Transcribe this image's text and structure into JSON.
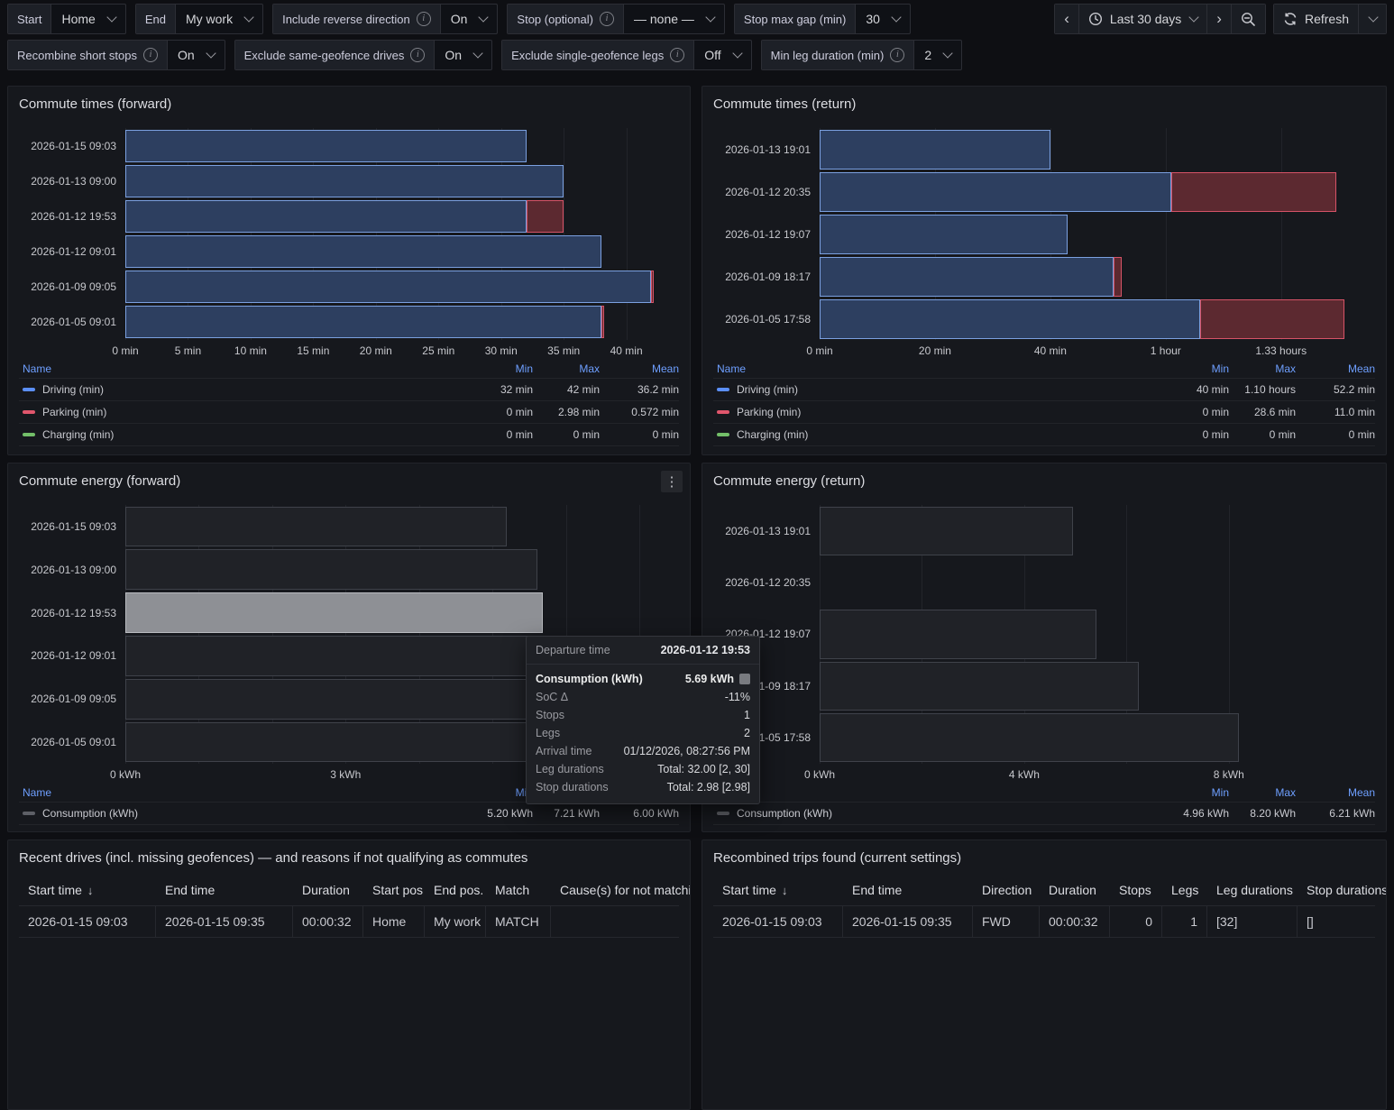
{
  "colors": {
    "page_bg": "#0e0f13",
    "panel_bg": "#16181d",
    "link_blue": "#6e9fff",
    "driving_swatch": "#5b8ff9",
    "parking_swatch": "#e0566c",
    "charging_swatch": "#73bf69",
    "consumption_swatch": "#5d5f66"
  },
  "toolbar": {
    "filters": [
      [
        {
          "label": "Start",
          "info": false,
          "value": "Home"
        },
        {
          "label": "End",
          "info": false,
          "value": "My work"
        },
        {
          "label": "Include reverse direction",
          "info": true,
          "value": "On"
        },
        {
          "label": "Stop (optional)",
          "info": true,
          "value": "— none —"
        },
        {
          "label": "Stop max gap (min)",
          "info": false,
          "value": "30"
        }
      ],
      [
        {
          "label": "Recombine short stops",
          "info": true,
          "value": "On"
        },
        {
          "label": "Exclude same-geofence drives",
          "info": true,
          "value": "On"
        },
        {
          "label": "Exclude single-geofence legs",
          "info": true,
          "value": "Off"
        },
        {
          "label": "Min leg duration (min)",
          "info": true,
          "value": "2"
        }
      ]
    ],
    "time_picker": {
      "range": "Last 30 days",
      "refresh": "Refresh"
    }
  },
  "legend_headers": [
    "Name",
    "Min",
    "Max",
    "Mean"
  ],
  "chart_data": [
    {
      "type": "bar",
      "orientation": "horizontal",
      "title": "Commute times (forward)",
      "xlabel": "minutes",
      "categories": [
        "2026-01-15 09:03",
        "2026-01-13 09:00",
        "2026-01-12 19:53",
        "2026-01-12 09:01",
        "2026-01-09 09:05",
        "2026-01-05 09:01"
      ],
      "series": [
        {
          "name": "Driving (min)",
          "swatch": "#5b8ff9",
          "fill": "#2d3f60",
          "border": "#7ba0e0",
          "values": [
            32,
            35,
            32,
            38,
            42,
            38
          ]
        },
        {
          "name": "Parking (min)",
          "swatch": "#e0566c",
          "fill": "#5c2930",
          "border": "#d65367",
          "values": [
            0,
            0,
            2.98,
            0,
            0.2,
            0.25
          ]
        },
        {
          "name": "Charging (min)",
          "swatch": "#73bf69",
          "fill": "#2b4a2a",
          "border": "#73bf69",
          "values": [
            0,
            0,
            0,
            0,
            0,
            0
          ]
        }
      ],
      "xlim": [
        0,
        44.2
      ],
      "gridlines": [
        0,
        5,
        10,
        15,
        20,
        25,
        30,
        35,
        40
      ],
      "ticks": [
        {
          "v": 0,
          "label": "0 min"
        },
        {
          "v": 5,
          "label": "5 min"
        },
        {
          "v": 10,
          "label": "10 min"
        },
        {
          "v": 15,
          "label": "15 min"
        },
        {
          "v": 20,
          "label": "20 min"
        },
        {
          "v": 25,
          "label": "25 min"
        },
        {
          "v": 30,
          "label": "30 min"
        },
        {
          "v": 35,
          "label": "35 min"
        },
        {
          "v": 40,
          "label": "40 min"
        }
      ],
      "legend": [
        {
          "name": "Driving (min)",
          "min": "32 min",
          "max": "42 min",
          "mean": "36.2 min"
        },
        {
          "name": "Parking (min)",
          "min": "0 min",
          "max": "2.98 min",
          "mean": "0.572 min"
        },
        {
          "name": "Charging (min)",
          "min": "0 min",
          "max": "0 min",
          "mean": "0 min"
        }
      ]
    },
    {
      "type": "bar",
      "orientation": "horizontal",
      "title": "Commute times (return)",
      "xlabel": "minutes",
      "categories": [
        "2026-01-13 19:01",
        "2026-01-12 20:35",
        "2026-01-12 19:07",
        "2026-01-09 18:17",
        "2026-01-05 17:58"
      ],
      "series": [
        {
          "name": "Driving (min)",
          "swatch": "#5b8ff9",
          "fill": "#2d3f60",
          "border": "#7ba0e0",
          "values": [
            40,
            61,
            43,
            51,
            66
          ]
        },
        {
          "name": "Parking (min)",
          "swatch": "#e0566c",
          "fill": "#5c2930",
          "border": "#d65367",
          "values": [
            0,
            28.6,
            0,
            1.4,
            25
          ]
        },
        {
          "name": "Charging (min)",
          "swatch": "#73bf69",
          "fill": "#2b4a2a",
          "border": "#73bf69",
          "values": [
            0,
            0,
            0,
            0,
            0
          ]
        }
      ],
      "xlim": [
        0,
        96.3
      ],
      "gridlines": [
        0,
        20,
        40,
        60,
        80
      ],
      "ticks": [
        {
          "v": 0,
          "label": "0 min"
        },
        {
          "v": 20,
          "label": "20 min"
        },
        {
          "v": 40,
          "label": "40 min"
        },
        {
          "v": 60,
          "label": "1 hour"
        },
        {
          "v": 80,
          "label": "1.33 hours"
        }
      ],
      "legend": [
        {
          "name": "Driving (min)",
          "min": "40 min",
          "max": "1.10 hours",
          "mean": "52.2 min"
        },
        {
          "name": "Parking (min)",
          "min": "0 min",
          "max": "28.6 min",
          "mean": "11.0 min"
        },
        {
          "name": "Charging (min)",
          "min": "0 min",
          "max": "0 min",
          "mean": "0 min"
        }
      ]
    },
    {
      "type": "bar",
      "orientation": "horizontal",
      "title": "Commute energy (forward)",
      "xlabel": "kWh",
      "categories": [
        "2026-01-15 09:03",
        "2026-01-13 09:00",
        "2026-01-12 19:53",
        "2026-01-12 09:01",
        "2026-01-09 09:05",
        "2026-01-05 09:01"
      ],
      "series": [
        {
          "name": "Consumption (kWh)",
          "swatch": "#5d5f66",
          "fill": "#202227",
          "border": "#3f424a",
          "values": [
            5.2,
            5.61,
            5.69,
            6.29,
            7.21,
            6.0
          ]
        }
      ],
      "hover_row": 2,
      "hover_fill": "#8e9095",
      "hover_border": "#b9bbc0",
      "xlim": [
        0,
        7.54
      ],
      "gridlines": [
        0,
        1,
        2,
        3,
        4,
        5,
        6,
        7
      ],
      "ticks": [
        {
          "v": 0,
          "label": "0 kWh"
        },
        {
          "v": 3,
          "label": "3 kWh"
        },
        {
          "v": 6,
          "label": "6 kWh"
        }
      ],
      "legend": [
        {
          "name": "Consumption (kWh)",
          "min": "5.20 kWh",
          "max": "7.21 kWh",
          "mean": "6.00 kWh"
        }
      ]
    },
    {
      "type": "bar",
      "orientation": "horizontal",
      "title": "Commute energy (return)",
      "xlabel": "kWh",
      "categories": [
        "2026-01-13 19:01",
        "2026-01-12 20:35",
        "2026-01-12 19:07",
        "2026-01-09 18:17",
        "2026-01-05 17:58"
      ],
      "series": [
        {
          "name": "Consumption (kWh)",
          "swatch": "#5d5f66",
          "fill": "#202227",
          "border": "#3f424a",
          "values": [
            4.96,
            null,
            5.42,
            6.24,
            8.2
          ]
        }
      ],
      "xlim": [
        0,
        10.86
      ],
      "gridlines": [
        0,
        2,
        4,
        6,
        8
      ],
      "ticks": [
        {
          "v": 0,
          "label": "0 kWh"
        },
        {
          "v": 4,
          "label": "4 kWh"
        },
        {
          "v": 8,
          "label": "8 kWh"
        }
      ],
      "legend": [
        {
          "name": "Consumption (kWh)",
          "min": "4.96 kWh",
          "max": "8.20 kWh",
          "mean": "6.21 kWh"
        }
      ]
    }
  ],
  "tooltip": {
    "header_label": "Departure time",
    "header_value": "2026-01-12 19:53",
    "rows": [
      {
        "label": "Consumption (kWh)",
        "value": "5.69 kWh",
        "bold": true,
        "swatch": true
      },
      {
        "label": "SoC Δ",
        "value": "-11%"
      },
      {
        "label": "Stops",
        "value": "1"
      },
      {
        "label": "Legs",
        "value": "2"
      },
      {
        "label": "Arrival time",
        "value": "01/12/2026, 08:27:56 PM"
      },
      {
        "label": "Leg durations",
        "value": "Total: 32.00 [2, 30]"
      },
      {
        "label": "Stop durations",
        "value": "Total: 2.98 [2.98]"
      }
    ]
  },
  "tables": [
    {
      "title": "Recent drives (incl. missing geofences) — and reasons if not qualifying as commutes",
      "sort_col": 0,
      "columns": [
        "Start time",
        "End time",
        "Duration",
        "Start pos.",
        "End pos.",
        "Match",
        "Cause(s) for not matching"
      ],
      "rows": [
        [
          "2026-01-15 09:03",
          "2026-01-15 09:35",
          "00:00:32",
          "Home",
          "My work",
          "MATCH",
          ""
        ]
      ]
    },
    {
      "title": "Recombined trips found (current settings)",
      "sort_col": 0,
      "columns": [
        "Start time",
        "End time",
        "Direction",
        "Duration",
        "Stops",
        "Legs",
        "Leg durations",
        "Stop durations"
      ],
      "rows": [
        [
          "2026-01-15 09:03",
          "2026-01-15 09:35",
          "FWD",
          "00:00:32",
          "0",
          "1",
          "[32]",
          "[]"
        ]
      ]
    }
  ]
}
